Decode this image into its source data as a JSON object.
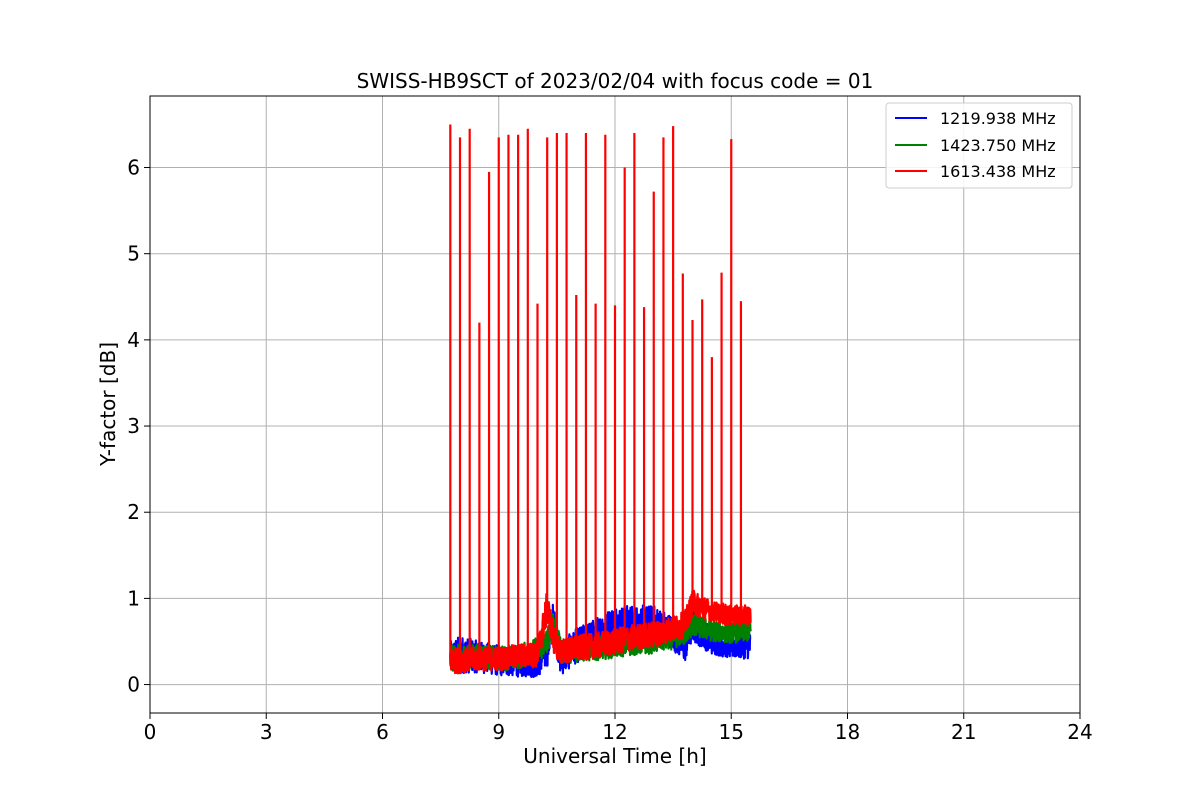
{
  "chart_data": {
    "type": "line",
    "title": "SWISS-HB9SCT of 2023/02/04 with focus code = 01",
    "xlabel": "Universal Time [h]",
    "ylabel": "Y-factor [dB]",
    "xlim": [
      0,
      24
    ],
    "ylim": [
      -0.33,
      6.83
    ],
    "xticks": [
      0,
      3,
      6,
      9,
      12,
      15,
      18,
      21,
      24
    ],
    "yticks": [
      0,
      1,
      2,
      3,
      4,
      5,
      6
    ],
    "grid": true,
    "legend_position": "top-right",
    "series": [
      {
        "name": "1219.938 MHz",
        "color": "#0000ff",
        "t": [
          7.75,
          8.0,
          8.5,
          9.0,
          9.5,
          10.0,
          10.25,
          10.4,
          10.6,
          11.0,
          11.5,
          12.0,
          12.5,
          13.0,
          13.5,
          13.8,
          14.0,
          14.5,
          15.0,
          15.5
        ],
        "base": [
          0.3,
          0.35,
          0.32,
          0.28,
          0.27,
          0.28,
          0.4,
          0.75,
          0.3,
          0.45,
          0.55,
          0.7,
          0.7,
          0.72,
          0.6,
          0.45,
          0.7,
          0.5,
          0.45,
          0.45
        ],
        "amp": [
          0.2,
          0.22,
          0.18,
          0.18,
          0.18,
          0.2,
          0.2,
          0.2,
          0.2,
          0.2,
          0.22,
          0.22,
          0.22,
          0.2,
          0.2,
          0.2,
          0.2,
          0.15,
          0.15,
          0.15
        ]
      },
      {
        "name": "1423.750 MHz",
        "color": "#008000",
        "t": [
          7.75,
          8.0,
          8.5,
          9.0,
          9.5,
          10.0,
          10.25,
          10.4,
          10.6,
          11.0,
          11.5,
          12.0,
          12.5,
          13.0,
          13.5,
          13.8,
          14.0,
          14.5,
          15.0,
          15.5
        ],
        "base": [
          0.3,
          0.32,
          0.33,
          0.3,
          0.32,
          0.4,
          0.5,
          0.75,
          0.38,
          0.4,
          0.42,
          0.45,
          0.48,
          0.5,
          0.55,
          0.6,
          0.7,
          0.62,
          0.6,
          0.62
        ],
        "amp": [
          0.15,
          0.15,
          0.14,
          0.14,
          0.14,
          0.15,
          0.15,
          0.15,
          0.14,
          0.14,
          0.14,
          0.14,
          0.14,
          0.14,
          0.14,
          0.14,
          0.14,
          0.12,
          0.12,
          0.12
        ]
      },
      {
        "name": "1613.438 MHz",
        "color": "#ff0000",
        "t": [
          7.75,
          8.0,
          8.5,
          9.0,
          9.5,
          10.0,
          10.25,
          10.4,
          10.6,
          11.0,
          11.5,
          12.0,
          12.5,
          13.0,
          13.5,
          13.8,
          14.0,
          14.5,
          15.0,
          15.5
        ],
        "base": [
          0.28,
          0.28,
          0.3,
          0.3,
          0.33,
          0.35,
          0.9,
          0.55,
          0.38,
          0.42,
          0.45,
          0.5,
          0.55,
          0.58,
          0.65,
          0.7,
          0.95,
          0.85,
          0.8,
          0.8
        ],
        "amp": [
          0.15,
          0.15,
          0.14,
          0.14,
          0.14,
          0.15,
          0.2,
          0.18,
          0.15,
          0.15,
          0.15,
          0.15,
          0.15,
          0.15,
          0.15,
          0.15,
          0.15,
          0.12,
          0.12,
          0.12
        ]
      }
    ],
    "spikes": {
      "series": "1613.438 MHz",
      "t": [
        7.75,
        8.0,
        8.25,
        8.5,
        8.75,
        9.0,
        9.25,
        9.5,
        9.75,
        10.0,
        10.25,
        10.5,
        10.75,
        11.0,
        11.25,
        11.5,
        11.75,
        12.0,
        12.25,
        12.5,
        12.75,
        13.0,
        13.25,
        13.5,
        13.75,
        14.0,
        14.25,
        14.5,
        14.75,
        15.0,
        15.25
      ],
      "y": [
        6.5,
        6.35,
        6.45,
        4.2,
        5.95,
        6.35,
        6.38,
        6.38,
        6.45,
        4.42,
        6.35,
        6.4,
        6.4,
        4.52,
        6.4,
        4.42,
        6.38,
        4.4,
        6.0,
        6.4,
        4.38,
        5.72,
        6.35,
        6.48,
        4.77,
        4.23,
        4.47,
        3.8,
        4.78,
        6.33,
        4.45
      ]
    }
  }
}
